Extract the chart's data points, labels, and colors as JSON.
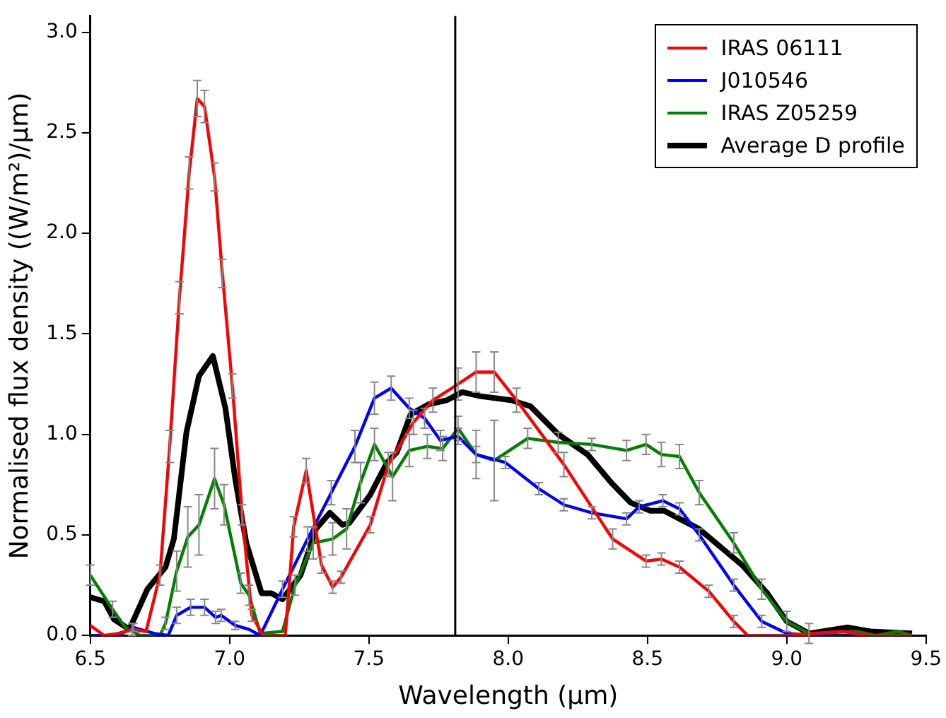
{
  "chart_data": {
    "type": "line",
    "xlabel": "Wavelength (μm)",
    "ylabel": "Normalised flux density ((W/m²)/μm)",
    "xlim": [
      6.5,
      9.5
    ],
    "xticks": [
      6.5,
      {
        "value": 7,
        "label": "7.0"
      },
      7.5,
      {
        "value": 8,
        "label": "8.0"
      },
      8.5,
      {
        "value": 9,
        "label": "9.0"
      },
      9.5
    ],
    "ylim": [
      0,
      3.08
    ],
    "yticks": [
      {
        "value": 0,
        "label": "0.0"
      },
      0.5,
      {
        "value": 1,
        "label": "1.0"
      },
      1.5,
      {
        "value": 2,
        "label": "2.0"
      },
      2.5,
      {
        "value": 3,
        "label": "3.0"
      }
    ],
    "grid": false,
    "legend": "top right",
    "marker": "none",
    "line_style": "solid",
    "ref_lines": [
      {
        "axis": "x",
        "value": 7.81,
        "color": "#000000"
      }
    ],
    "series": [
      {
        "name": "IRAS 06111",
        "color": "#ff0000",
        "x": [
          6.5,
          6.55,
          6.6,
          6.65,
          6.7,
          6.75,
          6.785,
          6.82,
          6.855,
          6.884,
          6.91,
          6.946,
          6.974,
          7.01,
          7.045,
          7.08,
          7.12,
          7.2,
          7.23,
          7.275,
          7.33,
          7.37,
          7.4,
          7.505,
          7.57,
          7.66,
          7.73,
          7.82,
          7.885,
          7.95,
          8.03,
          8.2,
          8.375,
          8.495,
          8.55,
          8.615,
          8.72,
          8.81,
          8.86,
          9.0,
          9.2,
          9.3,
          9.45
        ],
        "values": [
          0.05,
          0.0,
          0.01,
          0.03,
          0.02,
          0.3,
          0.94,
          1.68,
          2.3,
          2.67,
          2.63,
          2.28,
          1.8,
          1.24,
          0.6,
          0.1,
          0.0,
          0.0,
          0.54,
          0.82,
          0.35,
          0.24,
          0.29,
          0.55,
          0.85,
          1.06,
          1.17,
          1.25,
          1.31,
          1.31,
          1.17,
          0.85,
          0.48,
          0.37,
          0.38,
          0.34,
          0.22,
          0.07,
          0.0,
          0.0,
          0.02,
          0.0,
          0.0
        ],
        "errors": [
          null,
          null,
          null,
          0.03,
          null,
          0.05,
          0.08,
          0.08,
          0.08,
          0.09,
          0.08,
          0.07,
          0.07,
          0.06,
          0.05,
          0.03,
          null,
          null,
          0.05,
          0.06,
          0.04,
          0.03,
          0.03,
          0.04,
          0.06,
          0.06,
          0.06,
          0.08,
          0.1,
          0.1,
          0.06,
          0.06,
          0.05,
          0.03,
          0.03,
          0.03,
          0.03,
          0.03,
          null,
          null,
          null,
          null,
          null
        ]
      },
      {
        "name": "J010546",
        "color": "#0000ff",
        "x": [
          6.5,
          6.6,
          6.655,
          6.73,
          6.78,
          6.81,
          6.86,
          6.91,
          6.95,
          6.97,
          7.02,
          7.07,
          7.11,
          7.19,
          7.28,
          7.365,
          7.45,
          7.52,
          7.58,
          7.645,
          7.7,
          7.757,
          7.82,
          7.885,
          7.99,
          8.11,
          8.2,
          8.3,
          8.425,
          8.47,
          8.555,
          8.615,
          8.686,
          8.81,
          8.91,
          9.0,
          9.1,
          9.45
        ],
        "values": [
          0.0,
          0.0,
          0.04,
          0.01,
          0.0,
          0.1,
          0.14,
          0.14,
          0.09,
          0.1,
          0.05,
          0.03,
          0.0,
          0.23,
          0.48,
          0.71,
          0.94,
          1.18,
          1.23,
          1.13,
          1.08,
          0.97,
          0.99,
          0.9,
          0.86,
          0.73,
          0.65,
          0.61,
          0.58,
          0.64,
          0.67,
          0.63,
          0.5,
          0.25,
          0.07,
          0.01,
          0.0,
          0.0
        ],
        "errors": [
          null,
          null,
          0.02,
          null,
          null,
          0.04,
          0.04,
          0.04,
          0.03,
          0.03,
          0.02,
          null,
          null,
          0.04,
          0.06,
          0.06,
          0.08,
          0.08,
          0.06,
          0.05,
          0.05,
          0.05,
          0.04,
          0.04,
          0.03,
          0.03,
          0.03,
          0.03,
          0.03,
          0.03,
          0.03,
          0.03,
          0.03,
          0.03,
          0.03,
          null,
          null,
          null
        ]
      },
      {
        "name": "IRAS Z05259",
        "color": "#008000",
        "x": [
          6.5,
          6.58,
          6.625,
          6.68,
          6.75,
          6.77,
          6.81,
          6.85,
          6.89,
          6.946,
          6.98,
          7.04,
          7.07,
          7.11,
          7.19,
          7.235,
          7.3,
          7.37,
          7.42,
          7.47,
          7.52,
          7.585,
          7.645,
          7.71,
          7.765,
          7.82,
          7.885,
          7.95,
          8.07,
          8.18,
          8.3,
          8.425,
          8.495,
          8.55,
          8.615,
          8.686,
          8.81,
          8.91,
          9.0,
          9.08,
          9.25,
          9.32,
          9.4,
          9.45
        ],
        "values": [
          0.3,
          0.13,
          0.04,
          0.0,
          0.0,
          0.06,
          0.32,
          0.49,
          0.55,
          0.78,
          0.65,
          0.26,
          0.2,
          0.01,
          0.02,
          0.25,
          0.46,
          0.48,
          0.53,
          0.76,
          0.95,
          0.79,
          0.92,
          0.94,
          0.93,
          1.03,
          0.9,
          0.87,
          0.98,
          0.96,
          0.95,
          0.92,
          0.95,
          0.9,
          0.89,
          0.71,
          0.46,
          0.23,
          0.07,
          0.01,
          0.02,
          0.0,
          0.02,
          0.0
        ],
        "errors": [
          0.05,
          0.04,
          null,
          null,
          null,
          0.03,
          0.1,
          0.15,
          0.15,
          0.15,
          0.1,
          0.05,
          0.05,
          null,
          null,
          0.05,
          0.08,
          0.08,
          0.1,
          0.1,
          0.08,
          0.12,
          0.08,
          0.06,
          0.06,
          0.06,
          0.12,
          0.2,
          0.05,
          0.05,
          0.03,
          0.05,
          0.05,
          0.06,
          0.06,
          0.06,
          0.05,
          0.05,
          0.05,
          0.05,
          null,
          null,
          null,
          null
        ]
      },
      {
        "name": "Average D profile",
        "color": "#000000",
        "x": [
          6.5,
          6.55,
          6.585,
          6.64,
          6.705,
          6.77,
          6.8,
          6.845,
          6.89,
          6.94,
          6.985,
          7.02,
          7.06,
          7.115,
          7.15,
          7.19,
          7.255,
          7.31,
          7.36,
          7.405,
          7.43,
          7.505,
          7.565,
          7.6,
          7.65,
          7.715,
          7.78,
          7.835,
          7.9,
          8.01,
          8.08,
          8.18,
          8.285,
          8.37,
          8.44,
          8.51,
          8.56,
          8.615,
          8.685,
          8.84,
          8.93,
          9.0,
          9.08,
          9.22,
          9.3,
          9.45
        ],
        "values": [
          0.19,
          0.17,
          0.08,
          0.03,
          0.23,
          0.34,
          0.48,
          1.01,
          1.29,
          1.39,
          1.13,
          0.78,
          0.46,
          0.21,
          0.21,
          0.18,
          0.3,
          0.53,
          0.61,
          0.55,
          0.56,
          0.7,
          0.86,
          0.91,
          1.1,
          1.15,
          1.17,
          1.21,
          1.19,
          1.17,
          1.14,
          1.0,
          0.9,
          0.76,
          0.66,
          0.62,
          0.62,
          0.58,
          0.53,
          0.35,
          0.21,
          0.07,
          0.01,
          0.04,
          0.02,
          0.01
        ]
      }
    ]
  }
}
